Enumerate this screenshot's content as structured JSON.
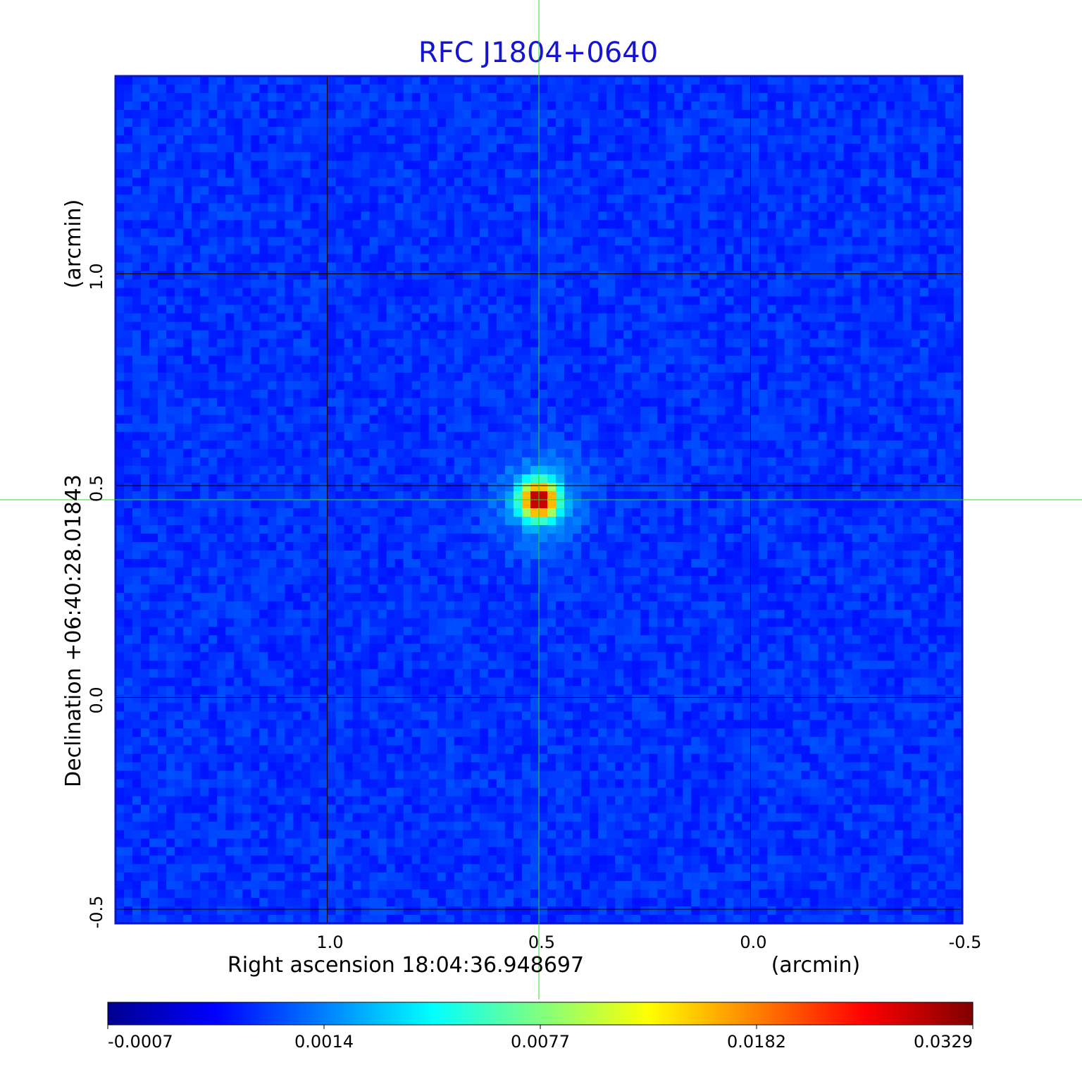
{
  "chart_data": {
    "type": "heatmap",
    "title": "RFC J1804+0640",
    "xlabel": "Right ascension  18:04:36.948697",
    "xunit": "(arcmin)",
    "ylabel": "Declination  +06:40:28.01843",
    "yunit": "(arcmin)",
    "xlim": [
      1.5,
      -0.5
    ],
    "ylim": [
      -0.5333,
      1.4667
    ],
    "x_ticks": [
      1.0,
      0.5,
      0.0,
      -0.5
    ],
    "x_tick_labels": [
      "1.0",
      "0.5",
      "0.0",
      "-0.5"
    ],
    "y_ticks": [
      -0.5,
      0.0,
      0.5,
      1.0
    ],
    "y_tick_labels": [
      "-0.5",
      "0.0",
      "0.5",
      "1.0"
    ],
    "grid": true,
    "grid_color": "#000000",
    "crosshair": {
      "x": 0.5,
      "y": 0.4667,
      "color": "#22dd22"
    },
    "source": {
      "x": 0.5,
      "y": 0.4667,
      "peak": 0.0329
    },
    "background_level": -0.0002,
    "colormap": "jet",
    "colorbar": {
      "min": -0.0007,
      "max": 0.0329,
      "tick_labels": [
        "-0.0007",
        "0.0014",
        "0.0077",
        "0.0182",
        "0.0329"
      ]
    },
    "title_color": "#1414d2"
  }
}
